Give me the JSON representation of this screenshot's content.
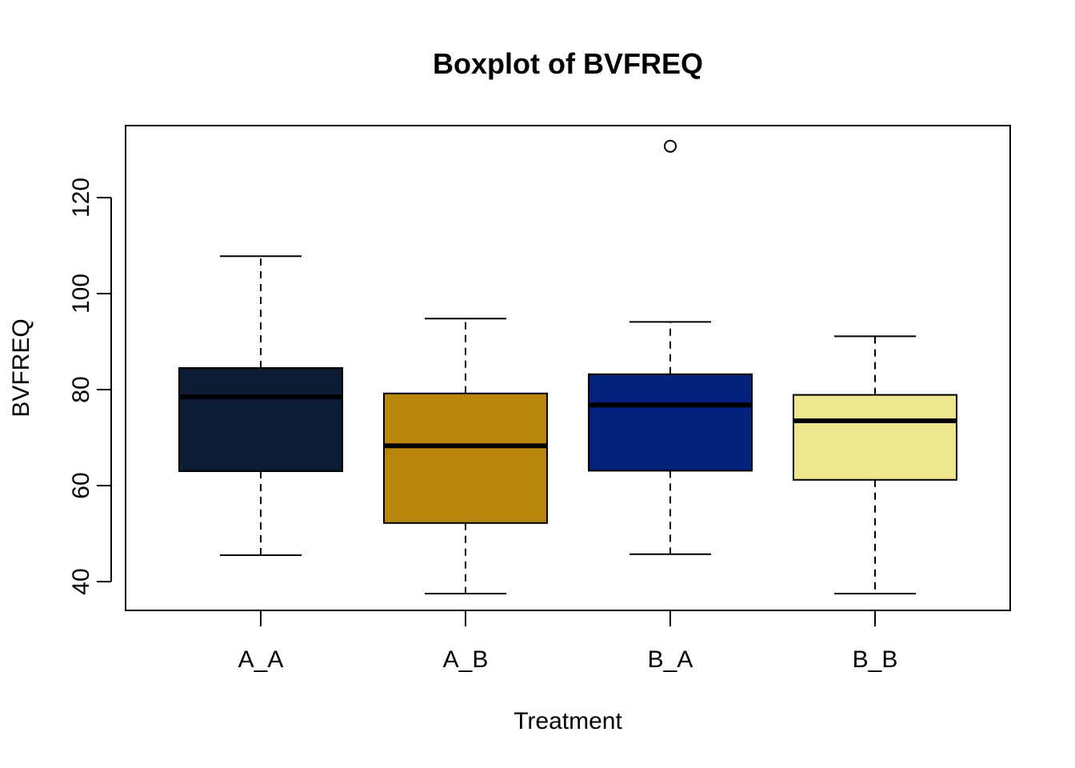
{
  "chart_data": {
    "type": "boxplot",
    "title": "Boxplot of BVFREQ",
    "xlabel": "Treatment",
    "ylabel": "BVFREQ",
    "ylim": [
      34,
      135
    ],
    "yticks": [
      40,
      60,
      80,
      100,
      120
    ],
    "categories": [
      "A_A",
      "A_B",
      "B_A",
      "B_B"
    ],
    "grid": false,
    "legend": "none",
    "series": [
      {
        "category": "A_A",
        "min": 45.5,
        "q1": 63,
        "median": 78.5,
        "q3": 84.5,
        "max": 107.8,
        "outliers": [],
        "color": "#0D1B33"
      },
      {
        "category": "A_B",
        "min": 37.5,
        "q1": 52.2,
        "median": 68.3,
        "q3": 79.2,
        "max": 94.8,
        "outliers": [],
        "color": "#B8860B"
      },
      {
        "category": "B_A",
        "min": 45.7,
        "q1": 63.1,
        "median": 76.8,
        "q3": 83.2,
        "max": 94.1,
        "outliers": [
          130.7
        ],
        "color": "#03227E"
      },
      {
        "category": "B_B",
        "min": 37.5,
        "q1": 61.2,
        "median": 73.5,
        "q3": 78.9,
        "max": 91.1,
        "outliers": [],
        "color": "#EEE68C"
      }
    ]
  }
}
